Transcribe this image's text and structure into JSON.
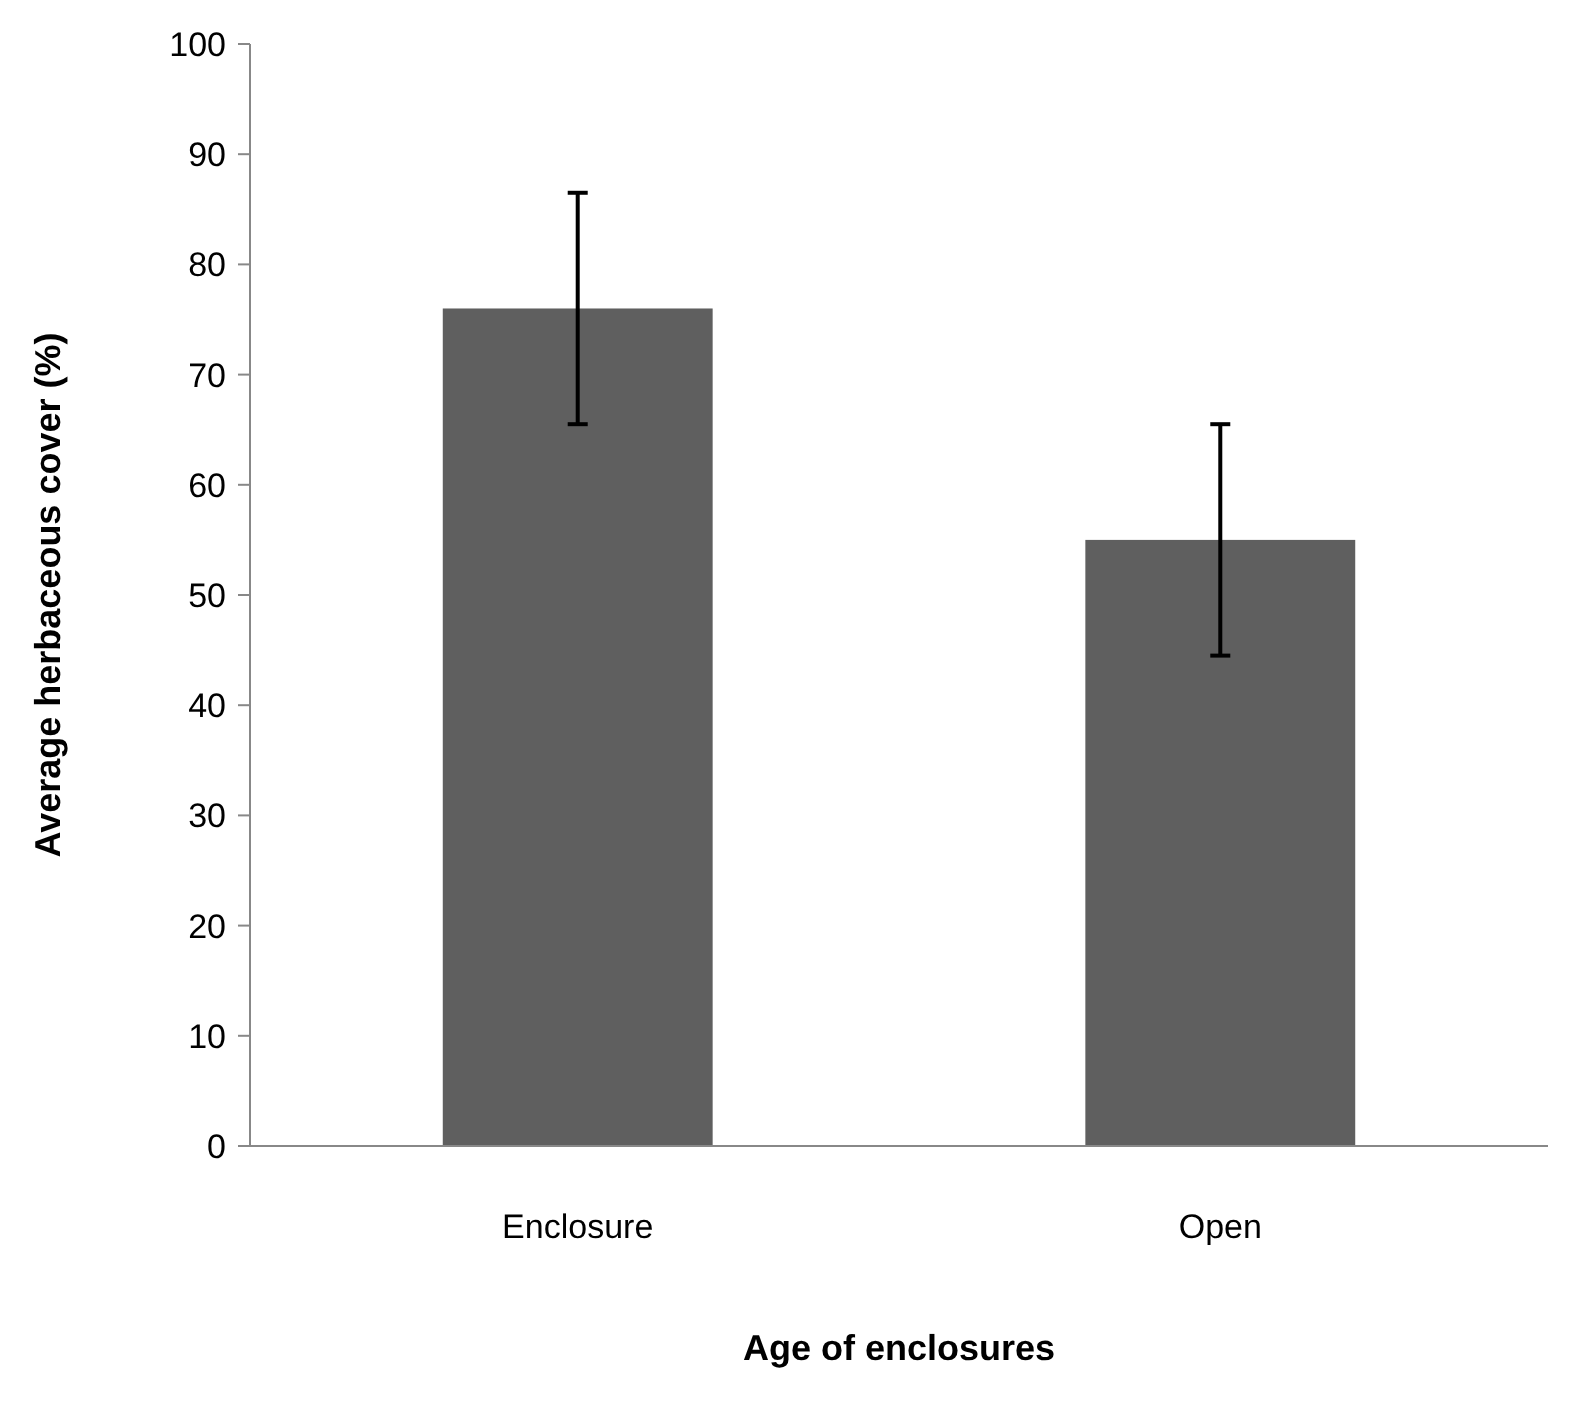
{
  "chart_data": {
    "type": "bar",
    "xlabel": "Age of enclosures",
    "ylabel": "Average herbaceous cover (%)",
    "categories": [
      "Enclosure",
      "Open"
    ],
    "values": [
      76,
      55
    ],
    "errors": [
      10.5,
      10.5
    ],
    "color": "#5f5f5f",
    "ylim": [
      0,
      100
    ],
    "yticks": [
      0,
      10,
      20,
      30,
      40,
      50,
      60,
      70,
      80,
      90,
      100
    ],
    "grid": false
  }
}
